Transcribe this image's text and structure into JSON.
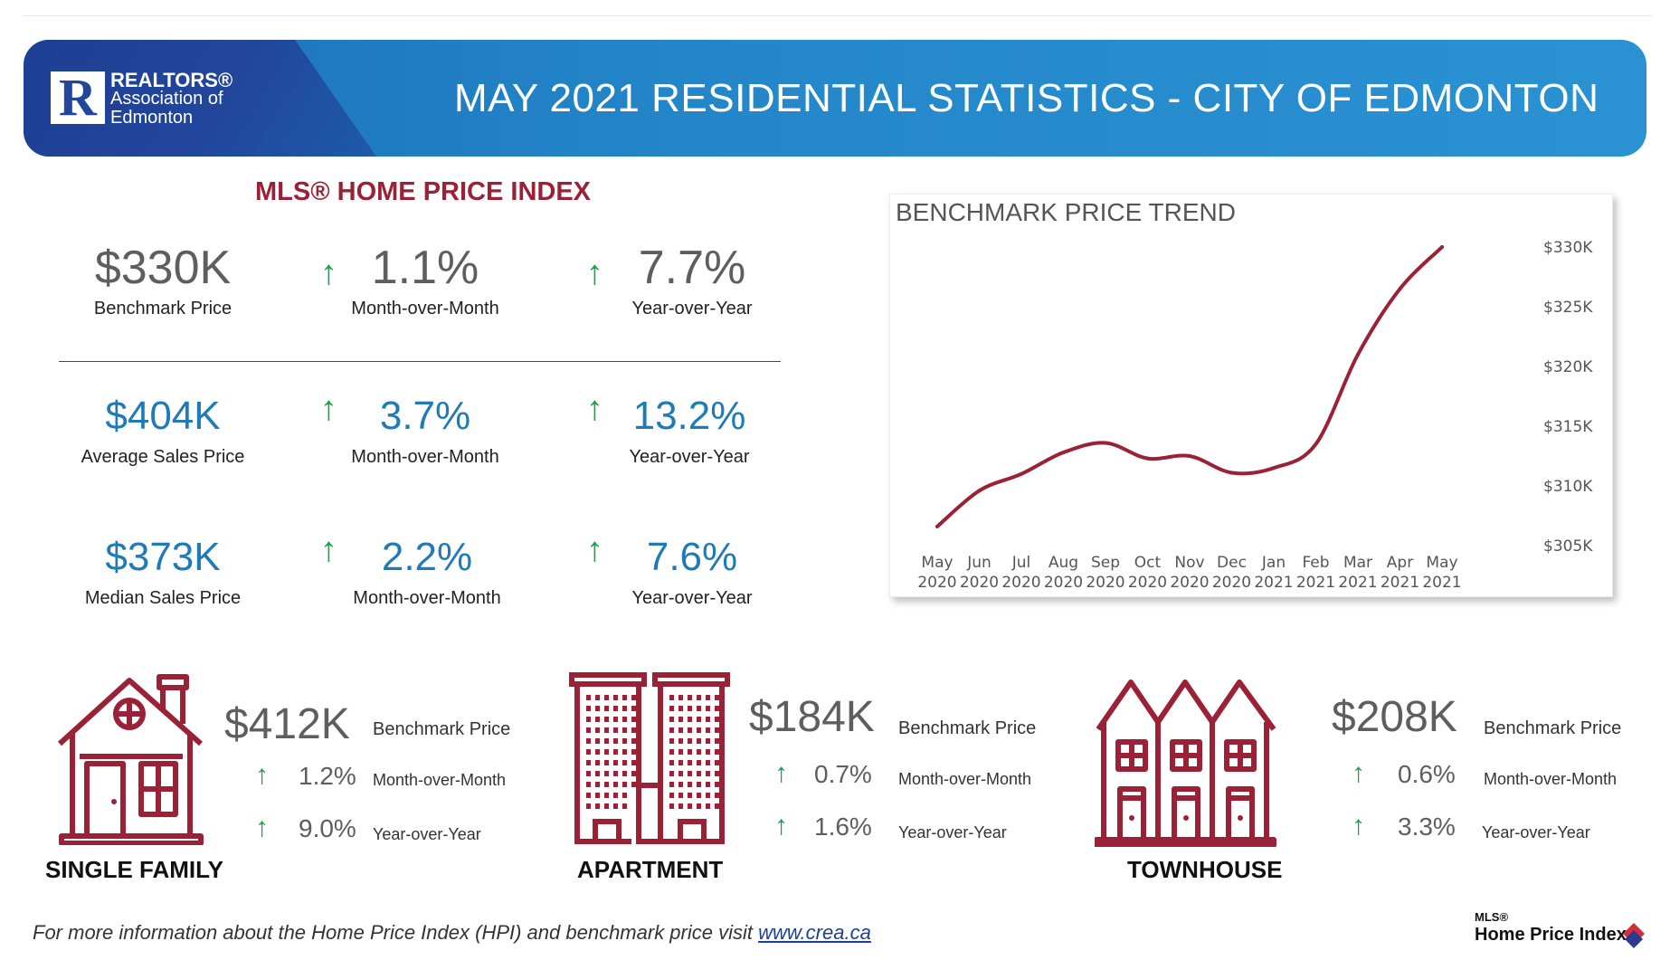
{
  "banner": {
    "org_line1": "REALTORS®",
    "org_line2": "Association of",
    "org_line3": "Edmonton",
    "title": "MAY 2021 RESIDENTIAL STATISTICS - CITY OF EDMONTON"
  },
  "hpi": {
    "title": "MLS® HOME PRICE INDEX",
    "rows": [
      {
        "value": "$330K",
        "label": "Benchmark Price",
        "mom": "1.1%",
        "mom_label": "Month-over-Month",
        "yoy": "7.7%",
        "yoy_label": "Year-over-Year"
      },
      {
        "value": "$404K",
        "label": "Average Sales Price",
        "mom": "3.7%",
        "mom_label": "Month-over-Month",
        "yoy": "13.2%",
        "yoy_label": "Year-over-Year"
      },
      {
        "value": "$373K",
        "label": "Median Sales Price",
        "mom": "2.2%",
        "mom_label": "Month-over-Month",
        "yoy": "7.6%",
        "yoy_label": "Year-over-Year"
      }
    ]
  },
  "chart_data": {
    "type": "line",
    "title": "BENCHMARK PRICE TREND",
    "categories": [
      [
        "May",
        "2020"
      ],
      [
        "Jun",
        "2020"
      ],
      [
        "Jul",
        "2020"
      ],
      [
        "Aug",
        "2020"
      ],
      [
        "Sep",
        "2020"
      ],
      [
        "Oct",
        "2020"
      ],
      [
        "Nov",
        "2020"
      ],
      [
        "Dec",
        "2020"
      ],
      [
        "Jan",
        "2021"
      ],
      [
        "Feb",
        "2021"
      ],
      [
        "Mar",
        "2021"
      ],
      [
        "Apr",
        "2021"
      ],
      [
        "May",
        "2021"
      ]
    ],
    "values": [
      306600,
      309600,
      311000,
      312800,
      313600,
      312300,
      312500,
      311100,
      311500,
      313500,
      321000,
      326500,
      330000
    ],
    "ylim": [
      305000,
      330000
    ],
    "yticks": [
      305000,
      310000,
      315000,
      320000,
      325000,
      330000
    ],
    "ytick_labels": [
      "$305K",
      "$310K",
      "$315K",
      "$320K",
      "$325K",
      "$330K"
    ],
    "ylabel_position": "right",
    "grid": false,
    "line_color": "#9a2136"
  },
  "properties": [
    {
      "name": "SINGLE FAMILY",
      "value": "$412K",
      "label": "Benchmark Price",
      "mom": "1.2%",
      "mom_label": "Month-over-Month",
      "yoy": "9.0%",
      "yoy_label": "Year-over-Year"
    },
    {
      "name": "APARTMENT",
      "value": "$184K",
      "label": "Benchmark Price",
      "mom": "0.7%",
      "mom_label": "Month-over-Month",
      "yoy": "1.6%",
      "yoy_label": "Year-over-Year"
    },
    {
      "name": "TOWNHOUSE",
      "value": "$208K",
      "label": "Benchmark Price",
      "mom": "0.6%",
      "mom_label": "Month-over-Month",
      "yoy": "3.3%",
      "yoy_label": "Year-over-Year"
    }
  ],
  "footer": {
    "text": "For more information about the Home Price Index (HPI) and benchmark price visit ",
    "link": "www.crea.ca"
  },
  "mls_logo": {
    "small": "MLS®",
    "big": "Home Price Index"
  },
  "colors": {
    "accent": "#9a2136",
    "up": "#17a24a",
    "blue": "#1f7bb8",
    "banner": "#2386c9"
  }
}
